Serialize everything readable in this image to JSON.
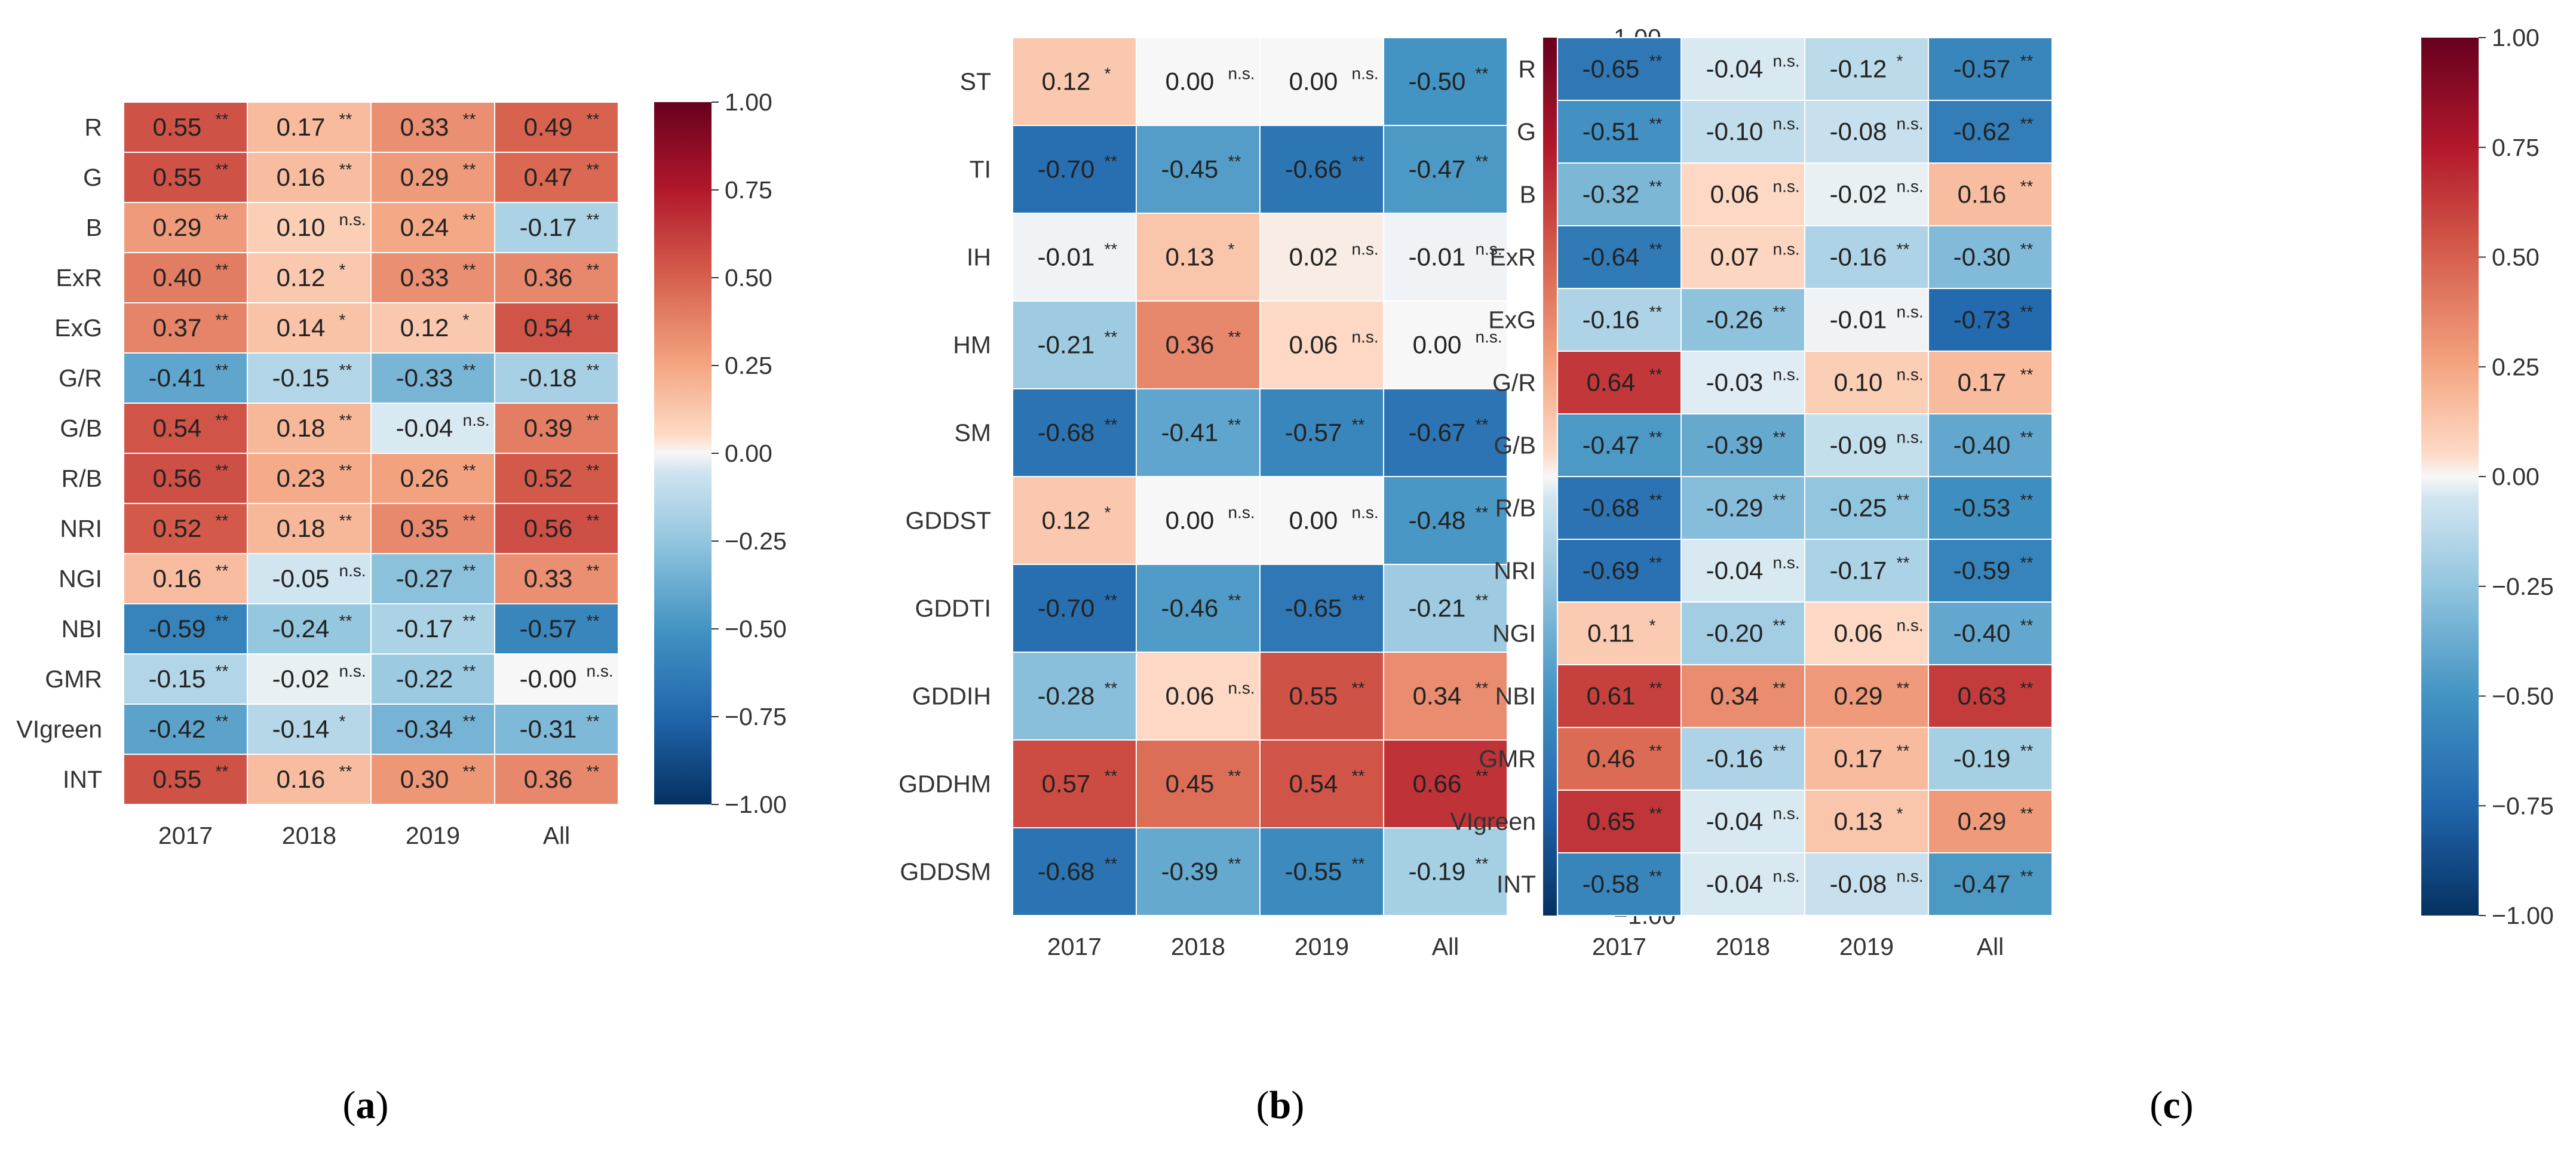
{
  "chart_data": [
    {
      "type": "heatmap",
      "panel_label": "a",
      "columns": [
        "2017",
        "2018",
        "2019",
        "All"
      ],
      "rows": [
        "R",
        "G",
        "B",
        "ExR",
        "ExG",
        "G/R",
        "G/B",
        "R/B",
        "NRI",
        "NGI",
        "NBI",
        "GMR",
        "VIgreen",
        "INT"
      ],
      "values": [
        [
          0.55,
          0.17,
          0.33,
          0.49
        ],
        [
          0.55,
          0.16,
          0.29,
          0.47
        ],
        [
          0.29,
          0.1,
          0.24,
          -0.17
        ],
        [
          0.4,
          0.12,
          0.33,
          0.36
        ],
        [
          0.37,
          0.14,
          0.12,
          0.54
        ],
        [
          -0.41,
          -0.15,
          -0.33,
          -0.18
        ],
        [
          0.54,
          0.18,
          -0.04,
          0.39
        ],
        [
          0.56,
          0.23,
          0.26,
          0.52
        ],
        [
          0.52,
          0.18,
          0.35,
          0.56
        ],
        [
          0.16,
          -0.05,
          -0.27,
          0.33
        ],
        [
          -0.59,
          -0.24,
          -0.17,
          -0.57
        ],
        [
          -0.15,
          -0.02,
          -0.22,
          -0.0
        ],
        [
          -0.42,
          -0.14,
          -0.34,
          -0.31
        ],
        [
          0.55,
          0.16,
          0.3,
          0.36
        ]
      ],
      "labels": [
        [
          "0.55",
          "0.17",
          "0.33",
          "0.49"
        ],
        [
          "0.55",
          "0.16",
          "0.29",
          "0.47"
        ],
        [
          "0.29",
          "0.10",
          "0.24",
          "-0.17"
        ],
        [
          "0.40",
          "0.12",
          "0.33",
          "0.36"
        ],
        [
          "0.37",
          "0.14",
          "0.12",
          "0.54"
        ],
        [
          "-0.41",
          "-0.15",
          "-0.33",
          "-0.18"
        ],
        [
          "0.54",
          "0.18",
          "-0.04",
          "0.39"
        ],
        [
          "0.56",
          "0.23",
          "0.26",
          "0.52"
        ],
        [
          "0.52",
          "0.18",
          "0.35",
          "0.56"
        ],
        [
          "0.16",
          "-0.05",
          "-0.27",
          "0.33"
        ],
        [
          "-0.59",
          "-0.24",
          "-0.17",
          "-0.57"
        ],
        [
          "-0.15",
          "-0.02",
          "-0.22",
          "-0.00"
        ],
        [
          "-0.42",
          "-0.14",
          "-0.34",
          "-0.31"
        ],
        [
          "0.55",
          "0.16",
          "0.30",
          "0.36"
        ]
      ],
      "significance": [
        [
          "**",
          "**",
          "**",
          "**"
        ],
        [
          "**",
          "**",
          "**",
          "**"
        ],
        [
          "**",
          "n.s.",
          "**",
          "**"
        ],
        [
          "**",
          "*",
          "**",
          "**"
        ],
        [
          "**",
          "*",
          "*",
          "**"
        ],
        [
          "**",
          "**",
          "**",
          "**"
        ],
        [
          "**",
          "**",
          "n.s.",
          "**"
        ],
        [
          "**",
          "**",
          "**",
          "**"
        ],
        [
          "**",
          "**",
          "**",
          "**"
        ],
        [
          "**",
          "n.s.",
          "**",
          "**"
        ],
        [
          "**",
          "**",
          "**",
          "**"
        ],
        [
          "**",
          "n.s.",
          "**",
          "n.s."
        ],
        [
          "**",
          "*",
          "**",
          "**"
        ],
        [
          "**",
          "**",
          "**",
          "**"
        ]
      ],
      "colorbar": {
        "range": [
          -1.0,
          1.0
        ],
        "ticks": [
          "1.00",
          "0.75",
          "0.50",
          "0.25",
          "0.00",
          "−0.25",
          "−0.50",
          "−0.75",
          "−1.00"
        ]
      }
    },
    {
      "type": "heatmap",
      "panel_label": "b",
      "columns": [
        "2017",
        "2018",
        "2019",
        "All"
      ],
      "rows": [
        "ST",
        "TI",
        "IH",
        "HM",
        "SM",
        "GDDST",
        "GDDTI",
        "GDDIH",
        "GDDHM",
        "GDDSM"
      ],
      "values": [
        [
          0.12,
          0.0,
          0.0,
          -0.5
        ],
        [
          -0.7,
          -0.45,
          -0.66,
          -0.47
        ],
        [
          -0.01,
          0.13,
          0.02,
          -0.01
        ],
        [
          -0.21,
          0.36,
          0.06,
          0.0
        ],
        [
          -0.68,
          -0.41,
          -0.57,
          -0.67
        ],
        [
          0.12,
          0.0,
          0.0,
          -0.48
        ],
        [
          -0.7,
          -0.46,
          -0.65,
          -0.21
        ],
        [
          -0.28,
          0.06,
          0.55,
          0.34
        ],
        [
          0.57,
          0.45,
          0.54,
          0.66
        ],
        [
          -0.68,
          -0.39,
          -0.55,
          -0.19
        ]
      ],
      "labels": [
        [
          "0.12",
          "0.00",
          "0.00",
          "-0.50"
        ],
        [
          "-0.70",
          "-0.45",
          "-0.66",
          "-0.47"
        ],
        [
          "-0.01",
          "0.13",
          "0.02",
          "-0.01"
        ],
        [
          "-0.21",
          "0.36",
          "0.06",
          "0.00"
        ],
        [
          "-0.68",
          "-0.41",
          "-0.57",
          "-0.67"
        ],
        [
          "0.12",
          "0.00",
          "0.00",
          "-0.48"
        ],
        [
          "-0.70",
          "-0.46",
          "-0.65",
          "-0.21"
        ],
        [
          "-0.28",
          "0.06",
          "0.55",
          "0.34"
        ],
        [
          "0.57",
          "0.45",
          "0.54",
          "0.66"
        ],
        [
          "-0.68",
          "-0.39",
          "-0.55",
          "-0.19"
        ]
      ],
      "significance": [
        [
          "*",
          "n.s.",
          "n.s.",
          "**"
        ],
        [
          "**",
          "**",
          "**",
          "**"
        ],
        [
          "**",
          "*",
          "n.s.",
          "n.s."
        ],
        [
          "**",
          "**",
          "n.s.",
          "n.s."
        ],
        [
          "**",
          "**",
          "**",
          "**"
        ],
        [
          "*",
          "n.s.",
          "n.s.",
          "**"
        ],
        [
          "**",
          "**",
          "**",
          "**"
        ],
        [
          "**",
          "n.s.",
          "**",
          "**"
        ],
        [
          "**",
          "**",
          "**",
          "**"
        ],
        [
          "**",
          "**",
          "**",
          "**"
        ]
      ],
      "colorbar": {
        "range": [
          -1.0,
          1.0
        ],
        "ticks": [
          "1.00",
          "0.75",
          "0.50",
          "0.25",
          "0.00",
          "−0.25",
          "−0.50",
          "−0.75",
          "−1.00"
        ]
      }
    },
    {
      "type": "heatmap",
      "panel_label": "c",
      "columns": [
        "2017",
        "2018",
        "2019",
        "All"
      ],
      "rows": [
        "R",
        "G",
        "B",
        "ExR",
        "ExG",
        "G/R",
        "G/B",
        "R/B",
        "NRI",
        "NGI",
        "NBI",
        "GMR",
        "VIgreen",
        "INT"
      ],
      "values": [
        [
          -0.65,
          -0.04,
          -0.12,
          -0.57
        ],
        [
          -0.51,
          -0.1,
          -0.08,
          -0.62
        ],
        [
          -0.32,
          0.06,
          -0.02,
          0.16
        ],
        [
          -0.64,
          0.07,
          -0.16,
          -0.3
        ],
        [
          -0.16,
          -0.26,
          -0.01,
          -0.73
        ],
        [
          0.64,
          -0.03,
          0.1,
          0.17
        ],
        [
          -0.47,
          -0.39,
          -0.09,
          -0.4
        ],
        [
          -0.68,
          -0.29,
          -0.25,
          -0.53
        ],
        [
          -0.69,
          -0.04,
          -0.17,
          -0.59
        ],
        [
          0.11,
          -0.2,
          0.06,
          -0.4
        ],
        [
          0.61,
          0.34,
          0.29,
          0.63
        ],
        [
          0.46,
          -0.16,
          0.17,
          -0.19
        ],
        [
          0.65,
          -0.04,
          0.13,
          0.29
        ],
        [
          -0.58,
          -0.04,
          -0.08,
          -0.47
        ]
      ],
      "labels": [
        [
          "-0.65",
          "-0.04",
          "-0.12",
          "-0.57"
        ],
        [
          "-0.51",
          "-0.10",
          "-0.08",
          "-0.62"
        ],
        [
          "-0.32",
          "0.06",
          "-0.02",
          "0.16"
        ],
        [
          "-0.64",
          "0.07",
          "-0.16",
          "-0.30"
        ],
        [
          "-0.16",
          "-0.26",
          "-0.01",
          "-0.73"
        ],
        [
          "0.64",
          "-0.03",
          "0.10",
          "0.17"
        ],
        [
          "-0.47",
          "-0.39",
          "-0.09",
          "-0.40"
        ],
        [
          "-0.68",
          "-0.29",
          "-0.25",
          "-0.53"
        ],
        [
          "-0.69",
          "-0.04",
          "-0.17",
          "-0.59"
        ],
        [
          "0.11",
          "-0.20",
          "0.06",
          "-0.40"
        ],
        [
          "0.61",
          "0.34",
          "0.29",
          "0.63"
        ],
        [
          "0.46",
          "-0.16",
          "0.17",
          "-0.19"
        ],
        [
          "0.65",
          "-0.04",
          "0.13",
          "0.29"
        ],
        [
          "-0.58",
          "-0.04",
          "-0.08",
          "-0.47"
        ]
      ],
      "significance": [
        [
          "**",
          "n.s.",
          "*",
          "**"
        ],
        [
          "**",
          "n.s.",
          "n.s.",
          "**"
        ],
        [
          "**",
          "n.s.",
          "n.s.",
          "**"
        ],
        [
          "**",
          "n.s.",
          "**",
          "**"
        ],
        [
          "**",
          "**",
          "n.s.",
          "**"
        ],
        [
          "**",
          "n.s.",
          "n.s.",
          "**"
        ],
        [
          "**",
          "**",
          "n.s.",
          "**"
        ],
        [
          "**",
          "**",
          "**",
          "**"
        ],
        [
          "**",
          "n.s.",
          "**",
          "**"
        ],
        [
          "*",
          "**",
          "n.s.",
          "**"
        ],
        [
          "**",
          "**",
          "**",
          "**"
        ],
        [
          "**",
          "**",
          "**",
          "**"
        ],
        [
          "**",
          "n.s.",
          "*",
          "**"
        ],
        [
          "**",
          "n.s.",
          "n.s.",
          "**"
        ]
      ],
      "colorbar": {
        "range": [
          -1.0,
          1.0
        ],
        "ticks": [
          "1.00",
          "0.75",
          "0.50",
          "0.25",
          "0.00",
          "−0.25",
          "−0.50",
          "−0.75",
          "−1.00"
        ]
      }
    }
  ]
}
